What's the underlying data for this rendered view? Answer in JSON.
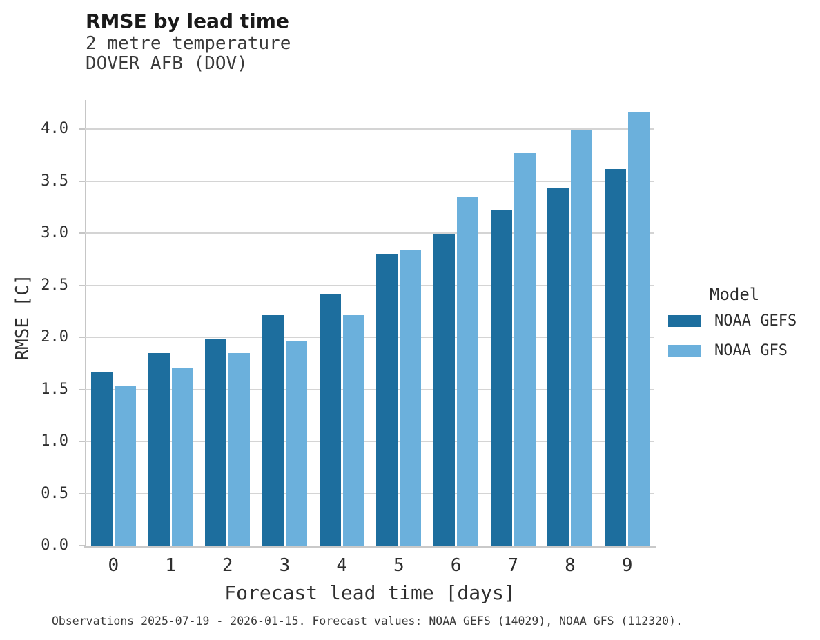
{
  "header": {
    "title": "RMSE by lead time",
    "subtitle_line1": "2 metre temperature",
    "subtitle_line2": "DOVER AFB (DOV)"
  },
  "chart_data": {
    "type": "bar",
    "title": "RMSE by lead time",
    "subtitle": [
      "2 metre temperature",
      "DOVER AFB (DOV)"
    ],
    "categories": [
      "0",
      "1",
      "2",
      "3",
      "4",
      "5",
      "6",
      "7",
      "8",
      "9"
    ],
    "series": [
      {
        "name": "NOAA GEFS",
        "color": "#1d6e9e",
        "values": [
          1.66,
          1.85,
          1.99,
          2.21,
          2.41,
          2.8,
          2.99,
          3.22,
          3.43,
          3.62
        ]
      },
      {
        "name": "NOAA GFS",
        "color": "#6bb0dc",
        "values": [
          1.53,
          1.7,
          1.85,
          1.97,
          2.21,
          2.84,
          3.35,
          3.77,
          3.99,
          4.16
        ]
      }
    ],
    "xlabel": "Forecast lead time [days]",
    "ylabel": "RMSE [C]",
    "ylim": [
      0,
      4.28
    ],
    "yticks": [
      0.0,
      0.5,
      1.0,
      1.5,
      2.0,
      2.5,
      3.0,
      3.5,
      4.0
    ],
    "ytick_labels": [
      "0.0",
      "0.5",
      "1.0",
      "1.5",
      "2.0",
      "2.5",
      "3.0",
      "3.5",
      "4.0"
    ],
    "grid": true,
    "legend_position": "right"
  },
  "legend": {
    "title": "Model",
    "entries": [
      {
        "label": "NOAA GEFS",
        "color": "#1d6e9e"
      },
      {
        "label": "NOAA GFS",
        "color": "#6bb0dc"
      }
    ]
  },
  "footer": {
    "text": "Observations 2025-07-19 - 2026-01-15. Forecast values: NOAA GEFS (14029), NOAA GFS (112320)."
  },
  "colors": {
    "gefs": "#1d6e9e",
    "gfs": "#6bb0dc",
    "gridline": "#d4d4d4",
    "spine": "#c6c6c6",
    "text": "#2e2e2e"
  }
}
